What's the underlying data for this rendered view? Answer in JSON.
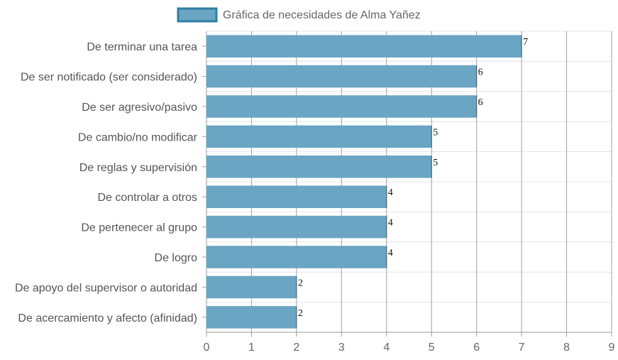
{
  "chart_data": {
    "type": "bar",
    "orientation": "horizontal",
    "title": "",
    "xlabel": "",
    "ylabel": "",
    "categories": [
      "De terminar una tarea",
      "De ser notificado (ser considerado)",
      "De ser agresivo/pasivo",
      "De cambio/no modificar",
      "De reglas y supervisión",
      "De controlar a otros",
      "De pertenecer al grupo",
      "De logro",
      "De apoyo del supervisor o autoridad",
      "De acercamiento y afecto (afinidad)"
    ],
    "series": [
      {
        "name": "Gráfica de necesidades de Alma Yañez",
        "values": [
          7,
          6,
          6,
          5,
          5,
          4,
          4,
          4,
          2,
          2
        ],
        "color": "#6aa5c3",
        "border_color": "#2e7ea6"
      }
    ],
    "xlim": [
      0,
      9
    ],
    "x_ticks": [
      0,
      1,
      2,
      3,
      4,
      5,
      6,
      7,
      8,
      9
    ],
    "grid": true,
    "legend_position": "top",
    "data_labels": true
  }
}
